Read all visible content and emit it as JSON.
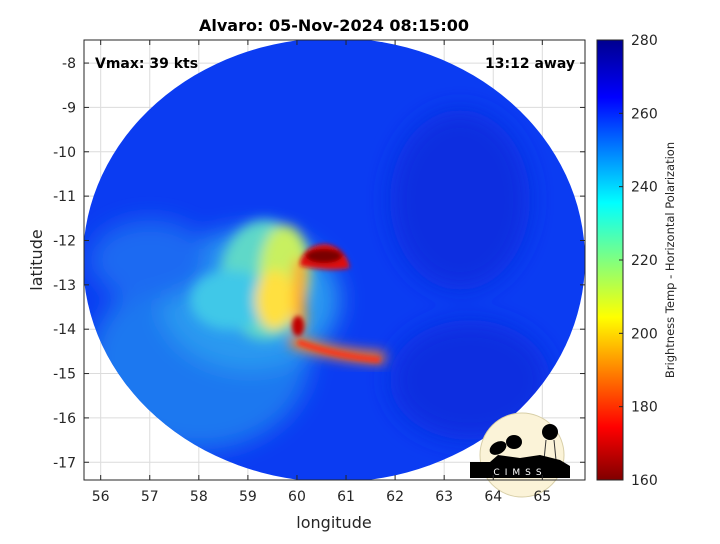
{
  "chart_data": {
    "type": "heatmap",
    "title": "Alvaro: 05-Nov-2024 08:15:00",
    "xlabel": "longitude",
    "ylabel": "latitude",
    "xlim": [
      55.66,
      65.87
    ],
    "ylim": [
      -17.4,
      -7.48
    ],
    "xticks": [
      "56",
      "57",
      "58",
      "59",
      "60",
      "61",
      "62",
      "63",
      "64",
      "65"
    ],
    "yticks": [
      "-8",
      "-9",
      "-10",
      "-11",
      "-12",
      "-13",
      "-14",
      "-15",
      "-16",
      "-17"
    ],
    "grid": true,
    "annotations": {
      "left": "Vmax: 39 kts",
      "right": "13:12 away"
    },
    "colorbar": {
      "label": "Brightness Temp - Horizontal Polarization",
      "range": [
        160,
        280
      ],
      "ticks": [
        "280",
        "260",
        "240",
        "220",
        "200",
        "180",
        "160"
      ],
      "colormap": "jet",
      "location": "right"
    },
    "features": [
      {
        "name": "coldest-core",
        "lon": 60.6,
        "lat": -12.2,
        "value": 165
      },
      {
        "name": "rainband-south",
        "lon": 61.5,
        "lat": -14.7,
        "value": 185
      },
      {
        "name": "rainband-west",
        "lon": 60.0,
        "lat": -13.8,
        "value": 190
      },
      {
        "name": "background",
        "value": 265
      }
    ]
  },
  "logo": {
    "text": "CIMSS"
  }
}
